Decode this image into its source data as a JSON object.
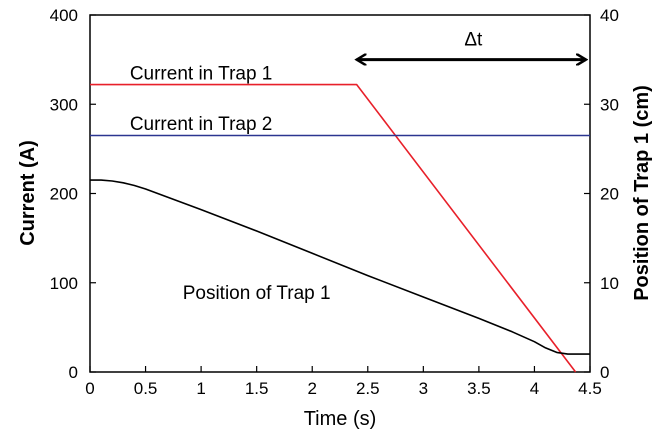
{
  "chart_data": {
    "type": "line",
    "xlabel": "Time (s)",
    "ylabel": "Current (A)",
    "y2label": "Position of Trap 1 (cm)",
    "xlim": [
      0,
      4.5
    ],
    "ylim": [
      0,
      400
    ],
    "y2lim": [
      0,
      40
    ],
    "xticks": [
      "0",
      "0.5",
      "1",
      "1.5",
      "2",
      "2.5",
      "3",
      "3.5",
      "4",
      "4.5"
    ],
    "yticks": [
      "0",
      "100",
      "200",
      "300",
      "400"
    ],
    "y2ticks": [
      "0",
      "10",
      "20",
      "30",
      "40"
    ],
    "grid": false,
    "series": [
      {
        "name": "Current in Trap 1",
        "axis": "left",
        "color": "#e8202a",
        "x": [
          0,
          2.4,
          4.37
        ],
        "y": [
          322,
          322,
          0
        ]
      },
      {
        "name": "Current in Trap 2",
        "axis": "left",
        "color": "#2b3590",
        "x": [
          0,
          4.5
        ],
        "y": [
          265,
          265
        ]
      },
      {
        "name": "Position of Trap 1",
        "axis": "right",
        "color": "#000000",
        "x": [
          0,
          0.1,
          0.2,
          0.3,
          0.4,
          0.5,
          1,
          1.5,
          2,
          2.5,
          3,
          3.5,
          3.8,
          4,
          4.1,
          4.2,
          4.3,
          4.5
        ],
        "y": [
          21.5,
          21.5,
          21.4,
          21.2,
          20.9,
          20.5,
          18.2,
          15.8,
          13.3,
          10.8,
          8.4,
          6.0,
          4.5,
          3.4,
          2.7,
          2.2,
          2.0,
          2.0
        ]
      }
    ],
    "annotations": [
      {
        "text": "Current in Trap 1",
        "x": 1.0,
        "y": 328
      },
      {
        "text": "Current in Trap 2",
        "x": 1.0,
        "y": 271
      },
      {
        "text": "Position of Trap 1",
        "x": 1.5,
        "y": 82
      },
      {
        "text": "Δt",
        "type": "double-arrow",
        "x_from": 2.4,
        "x_to": 4.5,
        "y": 350
      }
    ]
  }
}
